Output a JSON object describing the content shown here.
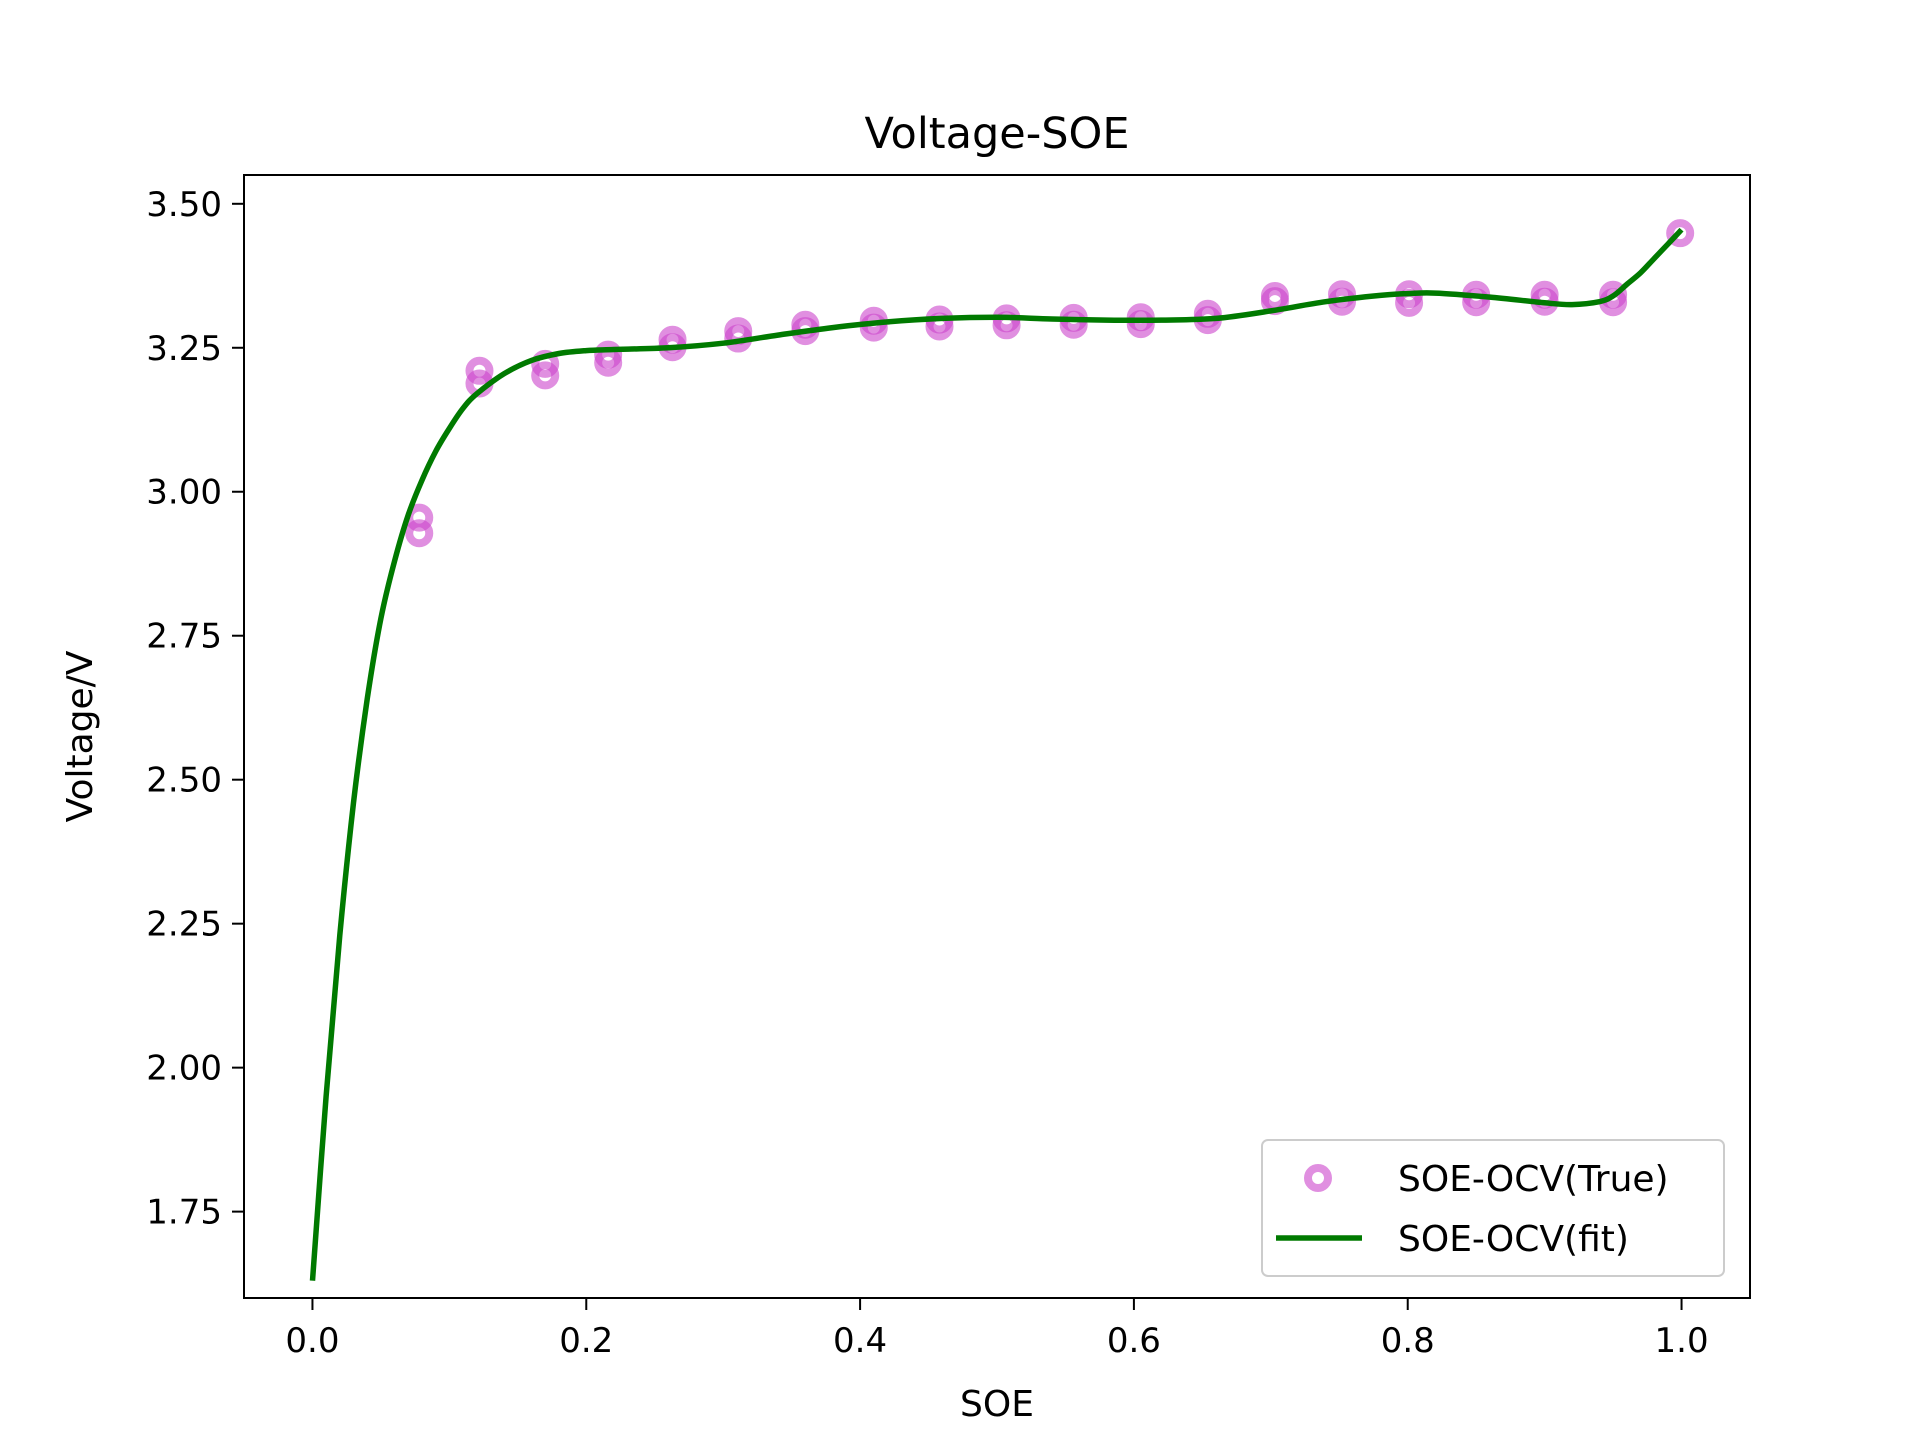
{
  "chart_data": {
    "type": "scatter",
    "title": "Voltage-SOE",
    "xlabel": "SOE",
    "ylabel": "Voltage/V",
    "xlim": [
      -0.05,
      1.05
    ],
    "ylim": [
      1.6,
      3.55
    ],
    "xticks": [
      0.0,
      0.2,
      0.4,
      0.6,
      0.8,
      1.0
    ],
    "xtick_labels": [
      "0.0",
      "0.2",
      "0.4",
      "0.6",
      "0.8",
      "1.0"
    ],
    "yticks": [
      1.75,
      2.0,
      2.25,
      2.5,
      2.75,
      3.0,
      3.25,
      3.5
    ],
    "ytick_labels": [
      "1.75",
      "2.00",
      "2.25",
      "2.50",
      "2.75",
      "3.00",
      "3.25",
      "3.50"
    ],
    "grid": false,
    "legend_position": "lower-right",
    "series": [
      {
        "name": "SOE-OCV(True)",
        "kind": "scatter",
        "color": "#cc44cc",
        "x": [
          0.078,
          0.078,
          0.122,
          0.122,
          0.17,
          0.17,
          0.216,
          0.216,
          0.263,
          0.263,
          0.311,
          0.311,
          0.36,
          0.36,
          0.41,
          0.41,
          0.458,
          0.458,
          0.507,
          0.507,
          0.556,
          0.556,
          0.605,
          0.605,
          0.654,
          0.654,
          0.703,
          0.703,
          0.752,
          0.752,
          0.801,
          0.801,
          0.85,
          0.85,
          0.9,
          0.9,
          0.95,
          0.95,
          0.999
        ],
        "y": [
          2.955,
          2.928,
          3.21,
          3.188,
          3.222,
          3.202,
          3.238,
          3.224,
          3.264,
          3.251,
          3.279,
          3.266,
          3.29,
          3.279,
          3.297,
          3.285,
          3.299,
          3.287,
          3.301,
          3.289,
          3.302,
          3.29,
          3.303,
          3.291,
          3.309,
          3.298,
          3.34,
          3.331,
          3.343,
          3.33,
          3.343,
          3.328,
          3.342,
          3.329,
          3.342,
          3.33,
          3.342,
          3.329,
          3.449
        ]
      },
      {
        "name": "SOE-OCV(fit)",
        "kind": "line",
        "color": "#007a00",
        "x": [
          0.0,
          0.01,
          0.02,
          0.03,
          0.04,
          0.05,
          0.06,
          0.07,
          0.08,
          0.09,
          0.1,
          0.11,
          0.12,
          0.14,
          0.16,
          0.18,
          0.2,
          0.22,
          0.26,
          0.3,
          0.34,
          0.38,
          0.42,
          0.46,
          0.5,
          0.54,
          0.58,
          0.62,
          0.66,
          0.7,
          0.74,
          0.78,
          0.8,
          0.82,
          0.86,
          0.9,
          0.92,
          0.94,
          0.95,
          0.96,
          0.97,
          0.98,
          0.99,
          1.0
        ],
        "y": [
          1.63,
          1.95,
          2.23,
          2.46,
          2.64,
          2.78,
          2.88,
          2.96,
          3.02,
          3.07,
          3.11,
          3.145,
          3.17,
          3.205,
          3.228,
          3.24,
          3.245,
          3.247,
          3.25,
          3.258,
          3.272,
          3.285,
          3.295,
          3.301,
          3.303,
          3.3,
          3.298,
          3.298,
          3.301,
          3.314,
          3.33,
          3.341,
          3.344,
          3.345,
          3.338,
          3.328,
          3.325,
          3.33,
          3.34,
          3.36,
          3.38,
          3.405,
          3.43,
          3.455
        ]
      }
    ]
  }
}
